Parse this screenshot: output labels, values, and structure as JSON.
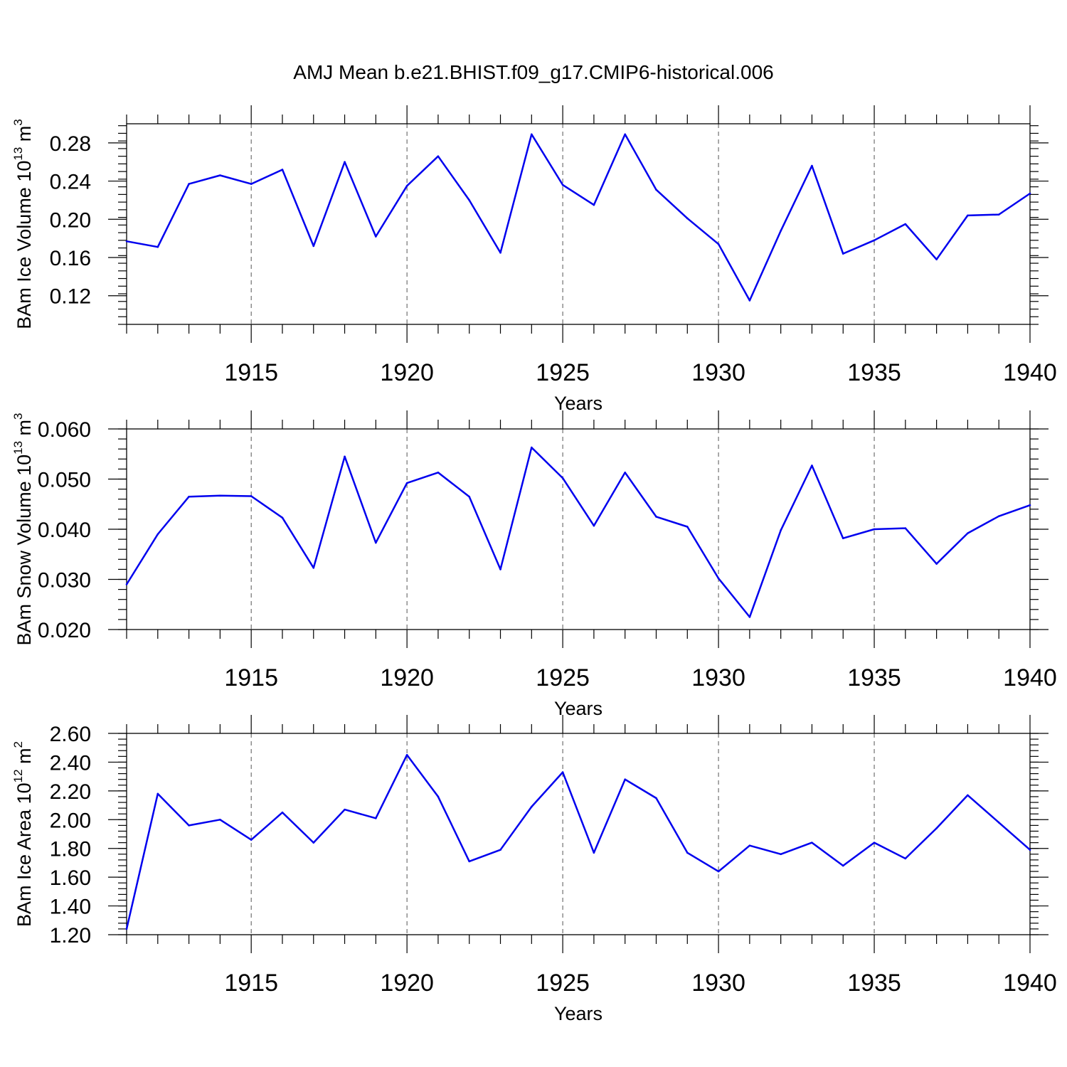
{
  "title": "AMJ Mean b.e21.BHIST.f09_g17.CMIP6-historical.006",
  "colors": {
    "series": "#0000ee",
    "axis": "#000000",
    "grid": "#555555"
  },
  "chart_data": [
    {
      "type": "line",
      "ylabel": "BAm Ice Volume",
      "ylabel_units": {
        "base": "10",
        "exp": "13",
        "unit": "m",
        "unit_exp": "3"
      },
      "xlabel": "Years",
      "xlim": [
        1911,
        1940
      ],
      "ylim": [
        0.09,
        0.3
      ],
      "yticks": [
        0.12,
        0.16,
        0.2,
        0.24,
        0.28
      ],
      "ytick_labels": [
        "0.12",
        "0.16",
        "0.20",
        "0.24",
        "0.28"
      ],
      "yminor_step": 0.008,
      "xticks": [
        1915,
        1920,
        1925,
        1930,
        1935,
        1940
      ],
      "xtick_labels": [
        "1915",
        "1920",
        "1925",
        "1930",
        "1935",
        "1940"
      ],
      "grid": "vertical-dashed",
      "x": [
        1911,
        1912,
        1913,
        1914,
        1915,
        1916,
        1917,
        1918,
        1919,
        1920,
        1921,
        1922,
        1923,
        1924,
        1925,
        1926,
        1927,
        1928,
        1929,
        1930,
        1931,
        1932,
        1933,
        1934,
        1935,
        1936,
        1937,
        1938,
        1939,
        1940
      ],
      "values": [
        0.177,
        0.171,
        0.237,
        0.246,
        0.237,
        0.252,
        0.172,
        0.26,
        0.182,
        0.235,
        0.266,
        0.22,
        0.165,
        0.289,
        0.236,
        0.215,
        0.289,
        0.231,
        0.201,
        0.174,
        0.115,
        0.188,
        0.256,
        0.164,
        0.178,
        0.195,
        0.158,
        0.204,
        0.205,
        0.227
      ]
    },
    {
      "type": "line",
      "ylabel": "BAm Snow Volume",
      "ylabel_units": {
        "base": "10",
        "exp": "13",
        "unit": "m",
        "unit_exp": "3"
      },
      "xlabel": "Years",
      "xlim": [
        1911,
        1940
      ],
      "ylim": [
        0.02,
        0.06
      ],
      "yticks": [
        0.02,
        0.03,
        0.04,
        0.05,
        0.06
      ],
      "ytick_labels": [
        "0.020",
        "0.030",
        "0.040",
        "0.050",
        "0.060"
      ],
      "yminor_step": 0.002,
      "xticks": [
        1915,
        1920,
        1925,
        1930,
        1935,
        1940
      ],
      "xtick_labels": [
        "1915",
        "1920",
        "1925",
        "1930",
        "1935",
        "1940"
      ],
      "grid": "vertical-dashed",
      "x": [
        1911,
        1912,
        1913,
        1914,
        1915,
        1916,
        1917,
        1918,
        1919,
        1920,
        1921,
        1922,
        1923,
        1924,
        1925,
        1926,
        1927,
        1928,
        1929,
        1930,
        1931,
        1932,
        1933,
        1934,
        1935,
        1936,
        1937,
        1938,
        1939,
        1940
      ],
      "values": [
        0.029,
        0.039,
        0.0465,
        0.0467,
        0.0466,
        0.0423,
        0.0323,
        0.0545,
        0.0373,
        0.0492,
        0.0513,
        0.0465,
        0.032,
        0.0563,
        0.0502,
        0.0407,
        0.0513,
        0.0425,
        0.0405,
        0.0302,
        0.0225,
        0.0398,
        0.0527,
        0.0382,
        0.04,
        0.0402,
        0.0331,
        0.0392,
        0.0426,
        0.0448
      ]
    },
    {
      "type": "line",
      "ylabel": "BAm Ice Area",
      "ylabel_units": {
        "base": "10",
        "exp": "12",
        "unit": "m",
        "unit_exp": "2"
      },
      "xlabel": "Years",
      "xlim": [
        1911,
        1940
      ],
      "ylim": [
        1.2,
        2.6
      ],
      "yticks": [
        1.2,
        1.4,
        1.6,
        1.8,
        2.0,
        2.2,
        2.4,
        2.6
      ],
      "ytick_labels": [
        "1.20",
        "1.40",
        "1.60",
        "1.80",
        "2.00",
        "2.20",
        "2.40",
        "2.60"
      ],
      "yminor_step": 0.04,
      "xticks": [
        1915,
        1920,
        1925,
        1930,
        1935,
        1940
      ],
      "xtick_labels": [
        "1915",
        "1920",
        "1925",
        "1930",
        "1935",
        "1940"
      ],
      "grid": "vertical-dashed",
      "x": [
        1911,
        1912,
        1913,
        1914,
        1915,
        1916,
        1917,
        1918,
        1919,
        1920,
        1921,
        1922,
        1923,
        1924,
        1925,
        1926,
        1927,
        1928,
        1929,
        1930,
        1931,
        1932,
        1933,
        1934,
        1935,
        1936,
        1937,
        1938,
        1939,
        1940
      ],
      "values": [
        1.24,
        2.18,
        1.96,
        2.0,
        1.86,
        2.05,
        1.84,
        2.07,
        2.01,
        2.45,
        2.16,
        1.71,
        1.79,
        2.09,
        2.33,
        1.77,
        2.28,
        2.15,
        1.77,
        1.64,
        1.82,
        1.76,
        1.84,
        1.68,
        1.84,
        1.73,
        1.94,
        2.17,
        1.98,
        1.79
      ]
    }
  ]
}
